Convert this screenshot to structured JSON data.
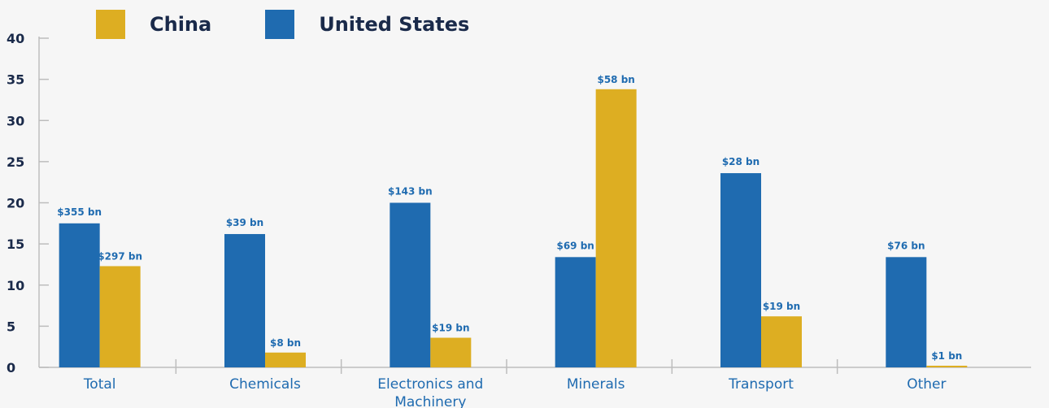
{
  "chart_data": {
    "type": "bar",
    "categories": [
      "Total",
      "Chemicals",
      "Electronics and Machinery",
      "Minerals",
      "Transport",
      "Other"
    ],
    "series": [
      {
        "name": "United States",
        "color": "#1f6bb0",
        "values": [
          17.5,
          16.2,
          20.0,
          13.4,
          23.6,
          13.4
        ],
        "labels": [
          "$355 bn",
          "$39 bn",
          "$143 bn",
          "$69 bn",
          "$28 bn",
          "$76 bn"
        ]
      },
      {
        "name": "China",
        "color": "#ddae22",
        "values": [
          12.3,
          1.8,
          3.6,
          33.8,
          6.2,
          0.2
        ],
        "labels": [
          "$297 bn",
          "$8 bn",
          "$19 bn",
          "$58 bn",
          "$19 bn",
          "$1 bn"
        ]
      }
    ],
    "ylim": [
      0,
      40
    ],
    "yticks": [
      "0",
      "5",
      "10",
      "15",
      "20",
      "25",
      "30",
      "35",
      "40"
    ],
    "legend_position": "top-left",
    "grid": false
  },
  "legend": {
    "china": "China",
    "us": "United States"
  },
  "colors": {
    "us": "#1f6bb0",
    "china": "#ddae22",
    "axis": "#bdbdbd",
    "tick_label": "#1a2a4a",
    "category_label": "#1f6bb0",
    "value_label": "#1f6bb0"
  }
}
